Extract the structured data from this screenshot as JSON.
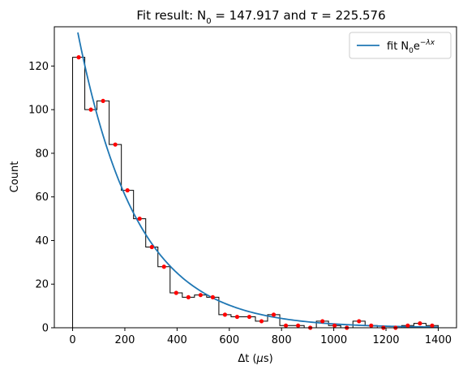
{
  "chart_data": {
    "type": "histogram",
    "title_prefix": "Fit result: N",
    "title_sub": "0",
    "title_mid": " = 147.917 and ",
    "title_tau": "τ",
    "title_suffix": " = 225.576",
    "xlabel_pre": "Δt (",
    "xlabel_mu": "μ",
    "xlabel_post": "s)",
    "ylabel": "Count",
    "xlim": [
      -70,
      1470
    ],
    "ylim": [
      0,
      138
    ],
    "xticks": [
      "0",
      "200",
      "400",
      "600",
      "800",
      "1000",
      "1200",
      "1400"
    ],
    "xtick_values": [
      0,
      200,
      400,
      600,
      800,
      1000,
      1200,
      1400
    ],
    "yticks": [
      "0",
      "20",
      "40",
      "60",
      "80",
      "100",
      "120"
    ],
    "ytick_values": [
      0,
      20,
      40,
      60,
      80,
      100,
      120
    ],
    "bin_edges": [
      0,
      46.7,
      93.3,
      140,
      186.7,
      233.3,
      280,
      326.7,
      373.3,
      420,
      466.7,
      513.3,
      560,
      606.7,
      653.3,
      700,
      746.7,
      793.3,
      840,
      886.7,
      933.3,
      980,
      1026.7,
      1073.3,
      1120,
      1166.7,
      1213.3,
      1260,
      1306.7,
      1353.3,
      1400
    ],
    "counts": [
      124,
      100,
      104,
      84,
      63,
      50,
      37,
      28,
      16,
      14,
      15,
      14,
      6,
      5,
      5,
      3,
      6,
      1,
      1,
      0,
      3,
      1,
      0,
      3,
      1,
      0,
      0,
      1,
      2,
      1
    ],
    "fit": {
      "N0": 147.917,
      "tau": 225.576,
      "x_range": [
        20,
        1400
      ]
    },
    "legend": {
      "label_pre": "fit N",
      "label_sub": "0",
      "label_mid": "e",
      "label_sup": "−λx",
      "position": "top-right"
    },
    "colors": {
      "histogram": "#000000",
      "points": "#ff0000",
      "fit": "#1f77b4"
    }
  }
}
